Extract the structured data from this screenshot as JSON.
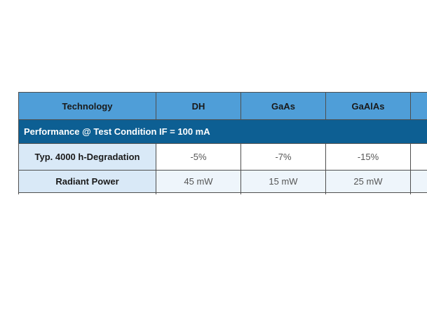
{
  "table": {
    "headers": [
      "Technology",
      "DH",
      "GaAs",
      "GaAlAs",
      ""
    ],
    "section_title": "Performance @ Test Condition IF = 100 mA",
    "rows": [
      {
        "label": "Typ. 4000 h-Degradation",
        "values": [
          "-5%",
          "-7%",
          "-15%",
          ""
        ]
      },
      {
        "label": "Radiant Power",
        "values": [
          "45 mW",
          "15 mW",
          "25 mW",
          ""
        ]
      }
    ],
    "colors": {
      "header_bg": "#4f9ed8",
      "section_bg": "#0d5f93",
      "label_cell_bg": "#d9e9f7",
      "border": "#4f4f4f"
    }
  }
}
